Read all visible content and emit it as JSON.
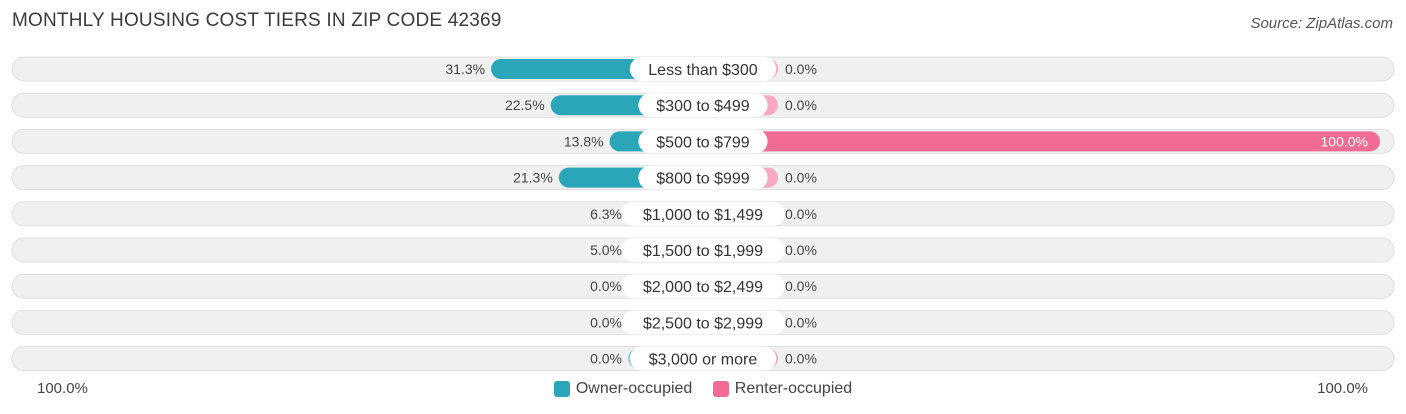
{
  "title": "MONTHLY HOUSING COST TIERS IN ZIP CODE 42369",
  "source": "Source: ZipAtlas.com",
  "colors": {
    "owner_strong": "#2aa6b8",
    "owner_light": "#7ccad5",
    "renter_strong": "#f26b94",
    "renter_light": "#f7a9c2",
    "row_bg": "#f0f0f0",
    "row_border": "#dedede"
  },
  "axis": {
    "left_label": "100.0%",
    "right_label": "100.0%"
  },
  "legend": {
    "owner_label": "Owner-occupied",
    "renter_label": "Renter-occupied"
  },
  "chart_data": {
    "type": "bar",
    "orientation": "horizontal-diverging",
    "categories": [
      "Less than $300",
      "$300 to $499",
      "$500 to $799",
      "$800 to $999",
      "$1,000 to $1,499",
      "$1,500 to $1,999",
      "$2,000 to $2,499",
      "$2,500 to $2,999",
      "$3,000 or more"
    ],
    "series": [
      {
        "name": "Owner-occupied",
        "values": [
          31.3,
          22.5,
          13.8,
          21.3,
          6.3,
          5.0,
          0.0,
          0.0,
          0.0
        ],
        "labels": [
          "31.3%",
          "22.5%",
          "13.8%",
          "21.3%",
          "6.3%",
          "5.0%",
          "0.0%",
          "0.0%",
          "0.0%"
        ]
      },
      {
        "name": "Renter-occupied",
        "values": [
          0.0,
          0.0,
          100.0,
          0.0,
          0.0,
          0.0,
          0.0,
          0.0,
          0.0
        ],
        "labels": [
          "0.0%",
          "0.0%",
          "100.0%",
          "0.0%",
          "0.0%",
          "0.0%",
          "0.0%",
          "0.0%",
          "0.0%"
        ]
      }
    ],
    "xlim": [
      -100,
      100
    ],
    "legend_position": "bottom-center"
  }
}
